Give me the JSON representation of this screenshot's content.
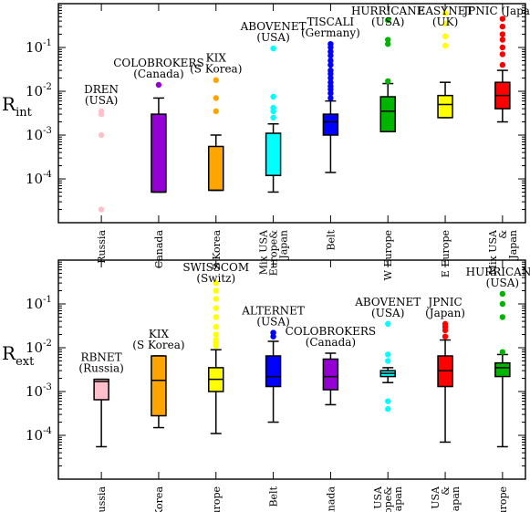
{
  "chart_data": [
    {
      "type": "box",
      "ylabel_main": "R",
      "ylabel_sub": "int",
      "yscale": "log",
      "ylim": [
        1e-05,
        1
      ],
      "y_ticks": [
        {
          "value": 0.0001,
          "base": "10",
          "exp": "-4"
        },
        {
          "value": 0.001,
          "base": "10",
          "exp": "-3"
        },
        {
          "value": 0.01,
          "base": "10",
          "exp": "-2"
        },
        {
          "value": 0.1,
          "base": "10",
          "exp": "-1"
        }
      ],
      "categories": [
        {
          "label": [
            "Russia"
          ],
          "color": "#ffc0cb",
          "box": null,
          "outliers": [
            2e-05,
            0.001,
            0.003,
            0.0035
          ],
          "annotation": [
            "DREN",
            "(USA)"
          ]
        },
        {
          "label": [
            "Canada"
          ],
          "color": "#9400d3",
          "box": {
            "low": 5e-05,
            "q1": 5e-05,
            "median": 5e-05,
            "q3": 0.003,
            "high": 0.007
          },
          "outliers": [
            0.014
          ],
          "annotation": [
            "COLOBROKERS",
            "(Canada)"
          ]
        },
        {
          "label": [
            "S Korea"
          ],
          "color": "#ffa500",
          "box": {
            "low": 5.5e-05,
            "q1": 5.5e-05,
            "median": 5.5e-05,
            "q3": 0.00055,
            "high": 0.001
          },
          "outliers": [
            0.0035,
            0.007,
            0.018
          ],
          "annotation": [
            "KIX",
            "(S Korea)"
          ]
        },
        {
          "label": [
            "Mix USA",
            "Europe&",
            "Japan"
          ],
          "color": "#00ffff",
          "box": {
            "low": 5e-05,
            "q1": 0.00012,
            "median": 0.00012,
            "q3": 0.0011,
            "high": 0.0018
          },
          "outliers": [
            0.0025,
            0.0035,
            0.0042,
            0.0075,
            0.095
          ],
          "annotation": [
            "ABOVENET",
            "(USA)"
          ]
        },
        {
          "label": [
            "Belt"
          ],
          "color": "#0000ff",
          "box": {
            "low": 0.00014,
            "q1": 0.001,
            "median": 0.002,
            "q3": 0.003,
            "high": 0.006
          },
          "outliers": [
            0.007,
            0.009,
            0.011,
            0.013,
            0.016,
            0.02,
            0.025,
            0.03,
            0.04,
            0.05,
            0.065,
            0.08,
            0.1,
            0.12
          ],
          "annotation": [
            "TISCALI",
            "(Germany)"
          ]
        },
        {
          "label": [
            "W Europe"
          ],
          "color": "#00b400",
          "box": {
            "low": 0.0012,
            "q1": 0.0012,
            "median": 0.0035,
            "q3": 0.0075,
            "high": 0.015
          },
          "outliers": [
            0.017,
            0.12,
            0.15,
            0.42
          ],
          "annotation": [
            "HURRICANE",
            "(USA)"
          ]
        },
        {
          "label": [
            "E Europe"
          ],
          "color": "#ffff00",
          "box": {
            "low": 0.0025,
            "q1": 0.0025,
            "median": 0.005,
            "q3": 0.008,
            "high": 0.016
          },
          "outliers": [
            0.11,
            0.18,
            0.35,
            0.6
          ],
          "annotation": [
            "EASYNET",
            "(UK)"
          ]
        },
        {
          "label": [
            "Mix USA",
            "&",
            "Japan"
          ],
          "color": "#ff0000",
          "box": {
            "low": 0.002,
            "q1": 0.004,
            "median": 0.008,
            "q3": 0.016,
            "high": 0.03
          },
          "outliers": [
            0.04,
            0.07,
            0.1,
            0.15,
            0.2,
            0.3,
            0.45
          ],
          "annotation": [
            "JPNIC (Japan)"
          ]
        }
      ]
    },
    {
      "type": "box",
      "ylabel_main": "R",
      "ylabel_sub": "ext",
      "yscale": "log",
      "ylim": [
        1e-05,
        1
      ],
      "y_ticks": [
        {
          "value": 0.0001,
          "base": "10",
          "exp": "-4"
        },
        {
          "value": 0.001,
          "base": "10",
          "exp": "-3"
        },
        {
          "value": 0.01,
          "base": "10",
          "exp": "-2"
        },
        {
          "value": 0.1,
          "base": "10",
          "exp": "-1"
        }
      ],
      "categories": [
        {
          "label": [
            "Russia"
          ],
          "color": "#ffc0cb",
          "box": {
            "low": 5.5e-05,
            "q1": 0.00065,
            "median": 0.0017,
            "q3": 0.0019,
            "high": 0.0019
          },
          "outliers": [],
          "annotation": [
            "RBNET",
            "(Russia)"
          ]
        },
        {
          "label": [
            "S Korea"
          ],
          "color": "#ffa500",
          "box": {
            "low": 0.00015,
            "q1": 0.00028,
            "median": 0.0018,
            "q3": 0.0065,
            "high": 0.0065
          },
          "outliers": [],
          "annotation": [
            "KIX",
            "(S Korea)"
          ]
        },
        {
          "label": [
            "E Europe"
          ],
          "color": "#ffff00",
          "box": {
            "low": 0.00011,
            "q1": 0.001,
            "median": 0.0019,
            "q3": 0.0035,
            "high": 0.009
          },
          "outliers": [
            0.011,
            0.013,
            0.015,
            0.02,
            0.03,
            0.05,
            0.08,
            0.13,
            0.2,
            0.3
          ],
          "annotation": [
            "SWISSCOM",
            "(Switz)"
          ]
        },
        {
          "label": [
            "Belt"
          ],
          "color": "#0000ff",
          "box": {
            "low": 0.0002,
            "q1": 0.0013,
            "median": 0.0022,
            "q3": 0.0065,
            "high": 0.014
          },
          "outliers": [
            0.018,
            0.022
          ],
          "annotation": [
            "ALTERNET",
            "(USA)"
          ]
        },
        {
          "label": [
            "Canada"
          ],
          "color": "#9400d3",
          "box": {
            "low": 0.0005,
            "q1": 0.0011,
            "median": 0.0022,
            "q3": 0.0055,
            "high": 0.0075
          },
          "outliers": [],
          "annotation": [
            "COLOBROKERS",
            "(Canada)"
          ]
        },
        {
          "label": [
            "Mix USA",
            "Europe&",
            "Japan"
          ],
          "color": "#00ffff",
          "box": {
            "low": 0.0016,
            "q1": 0.0022,
            "median": 0.0026,
            "q3": 0.003,
            "high": 0.0035
          },
          "outliers": [
            0.0004,
            0.0006,
            0.005,
            0.007,
            0.035
          ],
          "annotation": [
            "ABOVENET",
            "(USA)"
          ]
        },
        {
          "label": [
            "Mix USA",
            "&",
            "Japan"
          ],
          "color": "#ff0000",
          "box": {
            "low": 7e-05,
            "q1": 0.0013,
            "median": 0.003,
            "q3": 0.0065,
            "high": 0.015
          },
          "outliers": [
            0.018,
            0.025,
            0.03,
            0.035
          ],
          "annotation": [
            "JPNIC",
            "(Japan)"
          ]
        },
        {
          "label": [
            "W Europe"
          ],
          "color": "#00b400",
          "box": {
            "low": 5.5e-05,
            "q1": 0.0022,
            "median": 0.0035,
            "q3": 0.0045,
            "high": 0.007
          },
          "outliers": [
            0.008,
            0.05,
            0.1,
            0.17
          ],
          "annotation": [
            "HURRICANE",
            "(USA)"
          ]
        }
      ]
    }
  ]
}
